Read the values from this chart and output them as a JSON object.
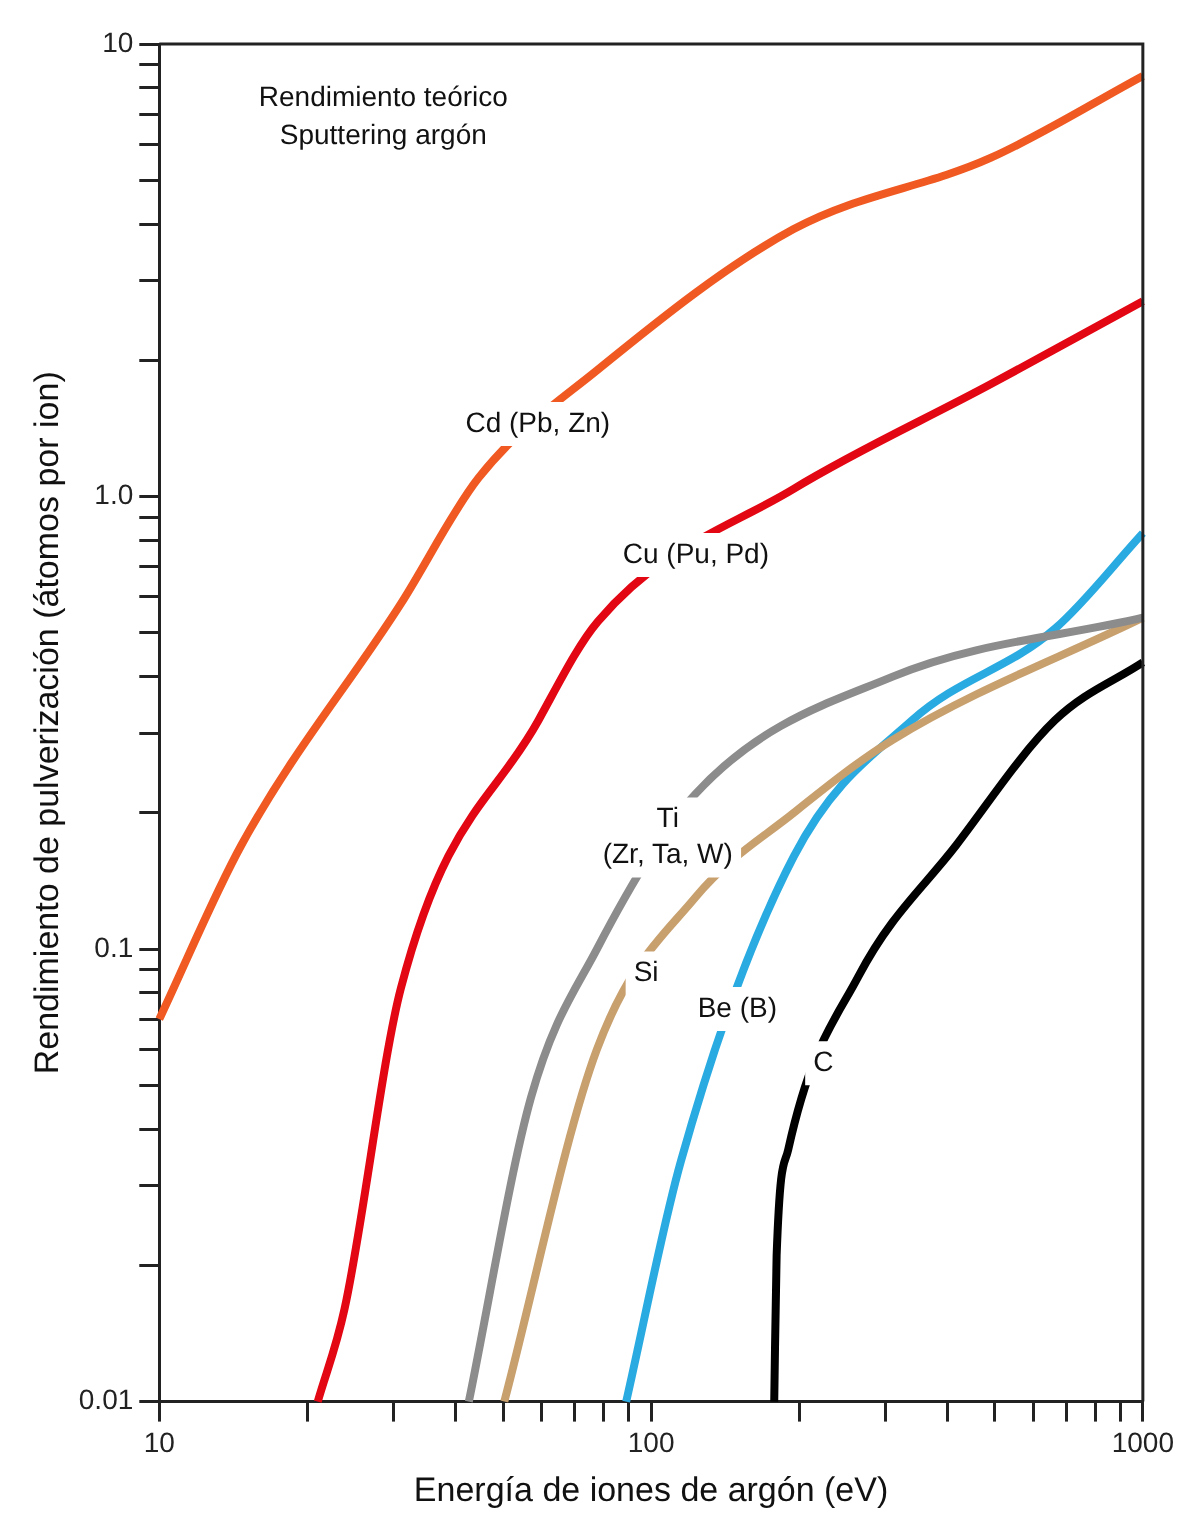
{
  "chart_data": {
    "type": "line",
    "title": "Rendimiento teórico",
    "subtitle": "Sputtering argón",
    "xlabel": "Energía de iones de argón (eV)",
    "ylabel": "Rendimiento de pulverización (átomos por ion)",
    "log": "xy",
    "grid": false,
    "legend": false,
    "marker": "none",
    "line_style": "solid",
    "xlim": [
      10,
      1000
    ],
    "ylim": [
      0.01,
      10
    ],
    "xticks": [
      10,
      {
        "value": 20,
        "label": null
      },
      {
        "value": 30,
        "label": null
      },
      {
        "value": 40,
        "label": null
      },
      {
        "value": 50,
        "label": null
      },
      {
        "value": 60,
        "label": null
      },
      {
        "value": 70,
        "label": null
      },
      {
        "value": 80,
        "label": null
      },
      {
        "value": 90,
        "label": null
      },
      100,
      {
        "value": 200,
        "label": null
      },
      {
        "value": 300,
        "label": null
      },
      {
        "value": 400,
        "label": null
      },
      {
        "value": 500,
        "label": null
      },
      {
        "value": 600,
        "label": null
      },
      {
        "value": 700,
        "label": null
      },
      {
        "value": 800,
        "label": null
      },
      {
        "value": 900,
        "label": null
      },
      1000
    ],
    "yticks": [
      0.01,
      {
        "value": 0.02,
        "label": null
      },
      {
        "value": 0.03,
        "label": null
      },
      {
        "value": 0.04,
        "label": null
      },
      {
        "value": 0.05,
        "label": null
      },
      {
        "value": 0.06,
        "label": null
      },
      {
        "value": 0.07,
        "label": null
      },
      {
        "value": 0.08,
        "label": null
      },
      {
        "value": 0.09,
        "label": null
      },
      0.1,
      {
        "value": 0.2,
        "label": null
      },
      {
        "value": 0.3,
        "label": null
      },
      {
        "value": 0.4,
        "label": null
      },
      {
        "value": 0.5,
        "label": null
      },
      {
        "value": 0.6,
        "label": null
      },
      {
        "value": 0.7,
        "label": null
      },
      {
        "value": 0.8,
        "label": null
      },
      {
        "value": 0.9,
        "label": null
      },
      {
        "value": 1,
        "label": "1.0"
      },
      {
        "value": 2,
        "label": null
      },
      {
        "value": 3,
        "label": null
      },
      {
        "value": 4,
        "label": null
      },
      {
        "value": 5,
        "label": null
      },
      {
        "value": 6,
        "label": null
      },
      {
        "value": 7,
        "label": null
      },
      {
        "value": 8,
        "label": null
      },
      {
        "value": 9,
        "label": null
      },
      10
    ],
    "series": [
      {
        "name": "Cd (Pb, Zn)",
        "color": "#f05a22",
        "x": [
          10,
          14.7,
          31,
          44.6,
          77.6,
          195,
          490,
          1000
        ],
        "values": [
          0.07,
          0.17,
          0.58,
          1.1,
          1.9,
          3.9,
          5.6,
          8.5
        ]
      },
      {
        "name": "Cu (Pu, Pd)",
        "color": "#e30613",
        "x": [
          21,
          23.8,
          31,
          59,
          78,
          195,
          490,
          1000
        ],
        "values": [
          0.01,
          0.016,
          0.082,
          0.32,
          0.53,
          1.04,
          1.77,
          2.7
        ]
      },
      {
        "name": "Ti (Zr, Ta, W)",
        "color": "#8c8c8c",
        "x": [
          42.6,
          57,
          77.6,
          123,
          310,
          1000
        ],
        "values": [
          0.01,
          0.047,
          0.1,
          0.22,
          0.4,
          0.54
        ]
      },
      {
        "name": "Si",
        "color": "#c8a06e",
        "x": [
          50.3,
          77.6,
          123,
          195,
          310,
          1000
        ],
        "values": [
          0.01,
          0.06,
          0.13,
          0.2,
          0.29,
          0.54
        ]
      },
      {
        "name": "Be (B)",
        "color": "#29abe2",
        "x": [
          89,
          115,
          195,
          339,
          662,
          1000
        ],
        "values": [
          0.01,
          0.034,
          0.16,
          0.32,
          0.51,
          0.83
        ]
      },
      {
        "name": "C",
        "color": "#000000",
        "x": [
          178,
          180,
          190,
          264,
          418,
          662,
          1000
        ],
        "values": [
          0.01,
          0.021,
          0.036,
          0.087,
          0.17,
          0.32,
          0.43
        ]
      }
    ]
  }
}
